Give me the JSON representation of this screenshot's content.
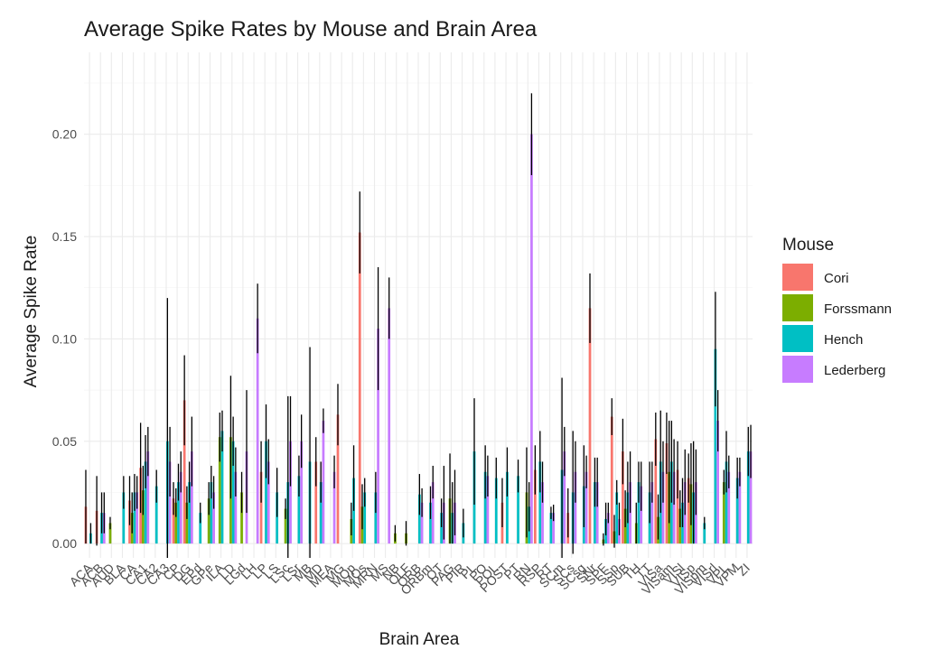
{
  "chart_data": {
    "type": "bar",
    "title": "Average Spike Rates by Mouse and Brain Area",
    "xlabel": "Brain Area",
    "ylabel": "Average Spike Rate",
    "ylim": [
      -0.007,
      0.24
    ],
    "yticks": [
      0.0,
      0.05,
      0.1,
      0.15,
      0.2
    ],
    "ytick_labels": [
      "0.00",
      "0.05",
      "0.10",
      "0.15",
      "0.20"
    ],
    "grid": true,
    "legend": {
      "title": "Mouse",
      "placement": "right",
      "entries": [
        "Cori",
        "Forssmann",
        "Hench",
        "Lederberg"
      ]
    },
    "colors": {
      "Cori": "#F8766D",
      "Forssmann": "#7CAE00",
      "Hench": "#00BFC4",
      "Lederberg": "#C77CFF",
      "errorbar": "#000000"
    },
    "categories": [
      "ACA",
      "ACB",
      "AUD",
      "BLA",
      "CA",
      "CA1",
      "CA2",
      "CA3",
      "CP",
      "DG",
      "EPd",
      "GPe",
      "ILA",
      "LD",
      "LGd",
      "LH",
      "LP",
      "LS",
      "LSc",
      "LSr",
      "MB",
      "MD",
      "MEA",
      "MG",
      "MOp",
      "MOs",
      "MRN",
      "MS",
      "NB",
      "OLF",
      "ORB",
      "ORBm",
      "OT",
      "PAG",
      "PIR",
      "PL",
      "PO",
      "POL",
      "POST",
      "PT",
      "RN",
      "RSP",
      "RT",
      "SCm",
      "SCs",
      "SCsg",
      "SNr",
      "SPF",
      "SSp",
      "SUB",
      "TH",
      "TT",
      "VISa",
      "VISam",
      "VISl",
      "VISp",
      "VISpm",
      "VISrl",
      "VPL",
      "VPM",
      "ZI"
    ],
    "series": [
      {
        "name": "Cori",
        "values": [
          0.018,
          0.016,
          null,
          null,
          0.021,
          0.037,
          null,
          null,
          0.022,
          0.07,
          null,
          null,
          null,
          null,
          null,
          null,
          0.035,
          null,
          null,
          null,
          null,
          0.04,
          null,
          0.063,
          null,
          0.152,
          null,
          null,
          null,
          null,
          null,
          null,
          null,
          null,
          null,
          null,
          null,
          null,
          0.02,
          null,
          null,
          0.036,
          null,
          null,
          0.015,
          null,
          0.115,
          null,
          0.062,
          0.045,
          null,
          null,
          0.051,
          0.049,
          0.036,
          0.032,
          null,
          null,
          null,
          null,
          null
        ]
      },
      {
        "name": "Forssmann",
        "values": [
          null,
          null,
          0.01,
          null,
          0.015,
          0.026,
          null,
          null,
          0.02,
          0.02,
          null,
          0.022,
          0.052,
          0.052,
          0.025,
          null,
          null,
          null,
          0.017,
          null,
          null,
          null,
          null,
          null,
          0.012,
          0.018,
          null,
          null,
          0.005,
          0.005,
          null,
          null,
          null,
          0.022,
          null,
          null,
          null,
          null,
          null,
          null,
          0.025,
          null,
          null,
          null,
          null,
          null,
          null,
          0.002,
          0.006,
          0.017,
          0.01,
          null,
          0.013,
          0.035,
          0.017,
          0.029,
          null,
          null,
          0.03,
          null,
          null
        ]
      },
      {
        "name": "Hench",
        "values": [
          0.005,
          0.015,
          null,
          0.025,
          0.025,
          0.04,
          0.028,
          0.05,
          0.03,
          0.03,
          0.015,
          0.03,
          0.055,
          0.05,
          null,
          null,
          0.05,
          0.025,
          0.03,
          0.033,
          0.04,
          0.03,
          null,
          null,
          0.032,
          0.025,
          0.025,
          null,
          null,
          null,
          0.024,
          0.02,
          0.015,
          0.015,
          0.01,
          0.045,
          0.035,
          0.032,
          0.035,
          0.033,
          0.018,
          0.04,
          0.015,
          0.036,
          0.025,
          0.028,
          0.03,
          0.012,
          0.025,
          0.025,
          0.03,
          0.025,
          0.04,
          0.04,
          0.02,
          0.025,
          0.01,
          0.095,
          0.04,
          0.032,
          0.045
        ]
      },
      {
        "name": "Lederberg",
        "values": [
          null,
          0.015,
          null,
          null,
          0.025,
          0.045,
          null,
          0.04,
          0.035,
          0.045,
          null,
          0.025,
          null,
          0.035,
          0.045,
          0.11,
          0.04,
          null,
          0.05,
          0.05,
          null,
          0.06,
          0.035,
          null,
          null,
          null,
          0.105,
          0.115,
          null,
          null,
          0.02,
          0.03,
          0.02,
          0.02,
          null,
          null,
          0.033,
          null,
          null,
          null,
          0.2,
          0.03,
          0.015,
          0.045,
          0.035,
          0.035,
          0.03,
          0.015,
          0.012,
          0.03,
          0.028,
          0.03,
          0.035,
          0.035,
          0.03,
          0.03,
          null,
          0.06,
          0.035,
          0.035,
          0.045
        ]
      }
    ],
    "errors": [
      {
        "name": "Cori",
        "values": [
          0.018,
          0.017,
          null,
          null,
          0.012,
          0.022,
          null,
          null,
          0.008,
          0.022,
          null,
          null,
          null,
          null,
          null,
          null,
          0.015,
          null,
          null,
          null,
          null,
          0.012,
          null,
          0.015,
          null,
          0.02,
          null,
          null,
          null,
          null,
          null,
          null,
          null,
          null,
          null,
          null,
          null,
          null,
          0.012,
          null,
          null,
          0.012,
          null,
          null,
          0.012,
          null,
          0.017,
          null,
          0.009,
          0.016,
          null,
          null,
          0.013,
          0.015,
          0.014,
          0.012,
          null,
          null,
          null,
          null,
          null
        ]
      },
      {
        "name": "Forssmann",
        "values": [
          null,
          null,
          0.003,
          null,
          0.01,
          0.012,
          null,
          null,
          0.007,
          0.008,
          null,
          0.008,
          0.012,
          0.03,
          0.01,
          null,
          null,
          null,
          0.005,
          null,
          null,
          null,
          null,
          null,
          0.008,
          0.011,
          null,
          null,
          0.004,
          0.006,
          null,
          null,
          null,
          0.022,
          null,
          null,
          null,
          null,
          null,
          null,
          0.022,
          null,
          null,
          null,
          null,
          null,
          null,
          0.003,
          0.008,
          0.009,
          0.01,
          null,
          0.011,
          0.025,
          0.009,
          0.02,
          null,
          null,
          0.006,
          null,
          null
        ]
      },
      {
        "name": "Hench",
        "values": [
          0.005,
          0.01,
          null,
          0.008,
          0.009,
          0.013,
          0.008,
          0.07,
          0.009,
          0.01,
          0.005,
          0.008,
          0.01,
          0.012,
          null,
          null,
          0.018,
          0.012,
          0.042,
          0.01,
          0.056,
          0.01,
          null,
          null,
          0.016,
          0.007,
          0.01,
          null,
          null,
          null,
          0.01,
          0.008,
          0.007,
          0.015,
          0.007,
          0.026,
          0.013,
          0.01,
          0.012,
          0.008,
          0.012,
          0.015,
          0.003,
          0.045,
          0.03,
          0.02,
          0.012,
          0.008,
          0.006,
          0.015,
          0.01,
          0.015,
          0.025,
          0.02,
          0.012,
          0.025,
          0.003,
          0.028,
          0.015,
          0.01,
          0.012
        ]
      },
      {
        "name": "Lederberg",
        "values": [
          null,
          0.01,
          null,
          null,
          0.008,
          0.012,
          null,
          0.017,
          0.01,
          0.017,
          null,
          0.008,
          null,
          0.012,
          0.03,
          0.017,
          0.011,
          null,
          0.022,
          0.013,
          null,
          0.006,
          0.008,
          null,
          null,
          null,
          0.03,
          0.015,
          null,
          null,
          0.007,
          0.008,
          0.018,
          0.016,
          null,
          null,
          0.01,
          null,
          null,
          null,
          0.02,
          0.01,
          0.004,
          0.012,
          0.015,
          0.008,
          0.012,
          0.005,
          0.008,
          0.015,
          0.012,
          0.01,
          0.015,
          0.016,
          0.016,
          0.016,
          null,
          0.015,
          0.008,
          0.007,
          0.013
        ]
      }
    ]
  }
}
